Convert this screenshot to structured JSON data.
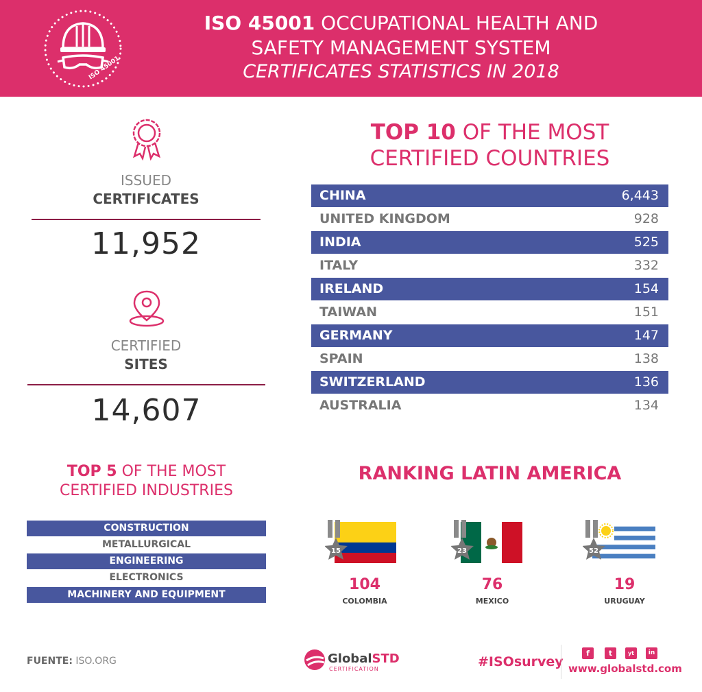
{
  "header": {
    "title_bold": "ISO 45001",
    "title_rest": " OCCUPATIONAL HEALTH AND",
    "title_line2": "SAFETY MANAGEMENT SYSTEM",
    "subtitle": "CERTIFICATES STATISTICS IN 2018",
    "badge_text": "ISO 45001"
  },
  "stats": {
    "certificates": {
      "label": "ISSUED",
      "label_strong": "CERTIFICATES",
      "value": "11,952",
      "icon": "ribbon-award-icon"
    },
    "sites": {
      "label": "CERTIFIED",
      "label_strong": "SITES",
      "value": "14,607",
      "icon": "location-pin-icon"
    }
  },
  "top_countries": {
    "title_bold": "TOP 10",
    "title_rest": " OF THE MOST",
    "title_line2": "CERTIFIED COUNTRIES",
    "rows": [
      {
        "name": "CHINA",
        "value": "6,443"
      },
      {
        "name": "UNITED KINGDOM",
        "value": "928"
      },
      {
        "name": "INDIA",
        "value": "525"
      },
      {
        "name": "ITALY",
        "value": "332"
      },
      {
        "name": "IRELAND",
        "value": "154"
      },
      {
        "name": "TAIWAN",
        "value": "151"
      },
      {
        "name": "GERMANY",
        "value": "147"
      },
      {
        "name": "SPAIN",
        "value": "138"
      },
      {
        "name": "SWITZERLAND",
        "value": "136"
      },
      {
        "name": "AUSTRALIA",
        "value": "134"
      }
    ]
  },
  "top_industries": {
    "title_bold": "TOP 5",
    "title_rest": " OF THE MOST",
    "title_line2": "CERTIFIED INDUSTRIES",
    "rows": [
      "CONSTRUCTION",
      "METALLURGICAL",
      "ENGINEERING",
      "ELECTRONICS",
      "MACHINERY AND EQUIPMENT"
    ]
  },
  "latin_america": {
    "title": "RANKING LATIN AMERICA",
    "countries": [
      {
        "name": "COLOMBIA",
        "value": "104",
        "rank": "15"
      },
      {
        "name": "MEXICO",
        "value": "76",
        "rank": "23"
      },
      {
        "name": "URUGUAY",
        "value": "19",
        "rank": "52"
      }
    ]
  },
  "footer": {
    "source_label": "FUENTE:",
    "source_value": " ISO.ORG",
    "brand_main": "Global",
    "brand_std": "STD",
    "brand_sub": "CERTIFICATION",
    "hashtag": "#ISOsurvey",
    "website": "www.globalstd.com",
    "social": [
      "f",
      "t",
      "yt",
      "in"
    ]
  },
  "colors": {
    "accent": "#dc2f6b",
    "navy": "#48579e",
    "dark_rule": "#8c1d46"
  }
}
